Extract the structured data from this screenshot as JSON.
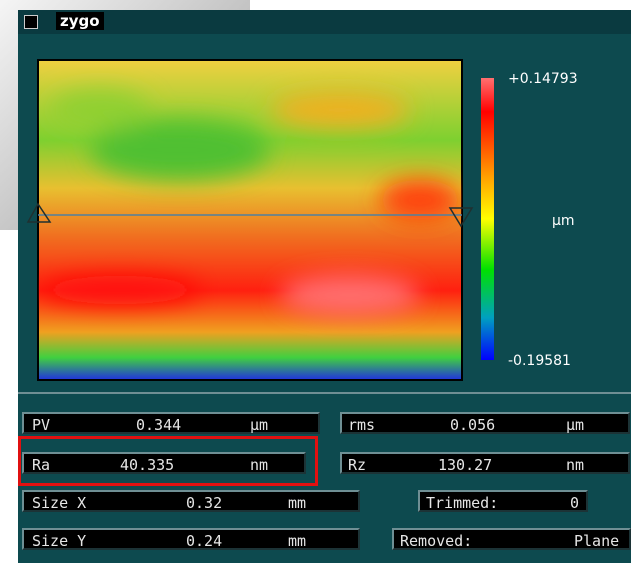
{
  "window": {
    "title": "zygo"
  },
  "colorbar": {
    "max": "+0.14793",
    "unit": "µm",
    "min": "-0.19581"
  },
  "results": [
    {
      "label": "PV",
      "value": "0.344",
      "unit": "µm"
    },
    {
      "label": "rms",
      "value": "0.056",
      "unit": "µm"
    },
    {
      "label": "Ra",
      "value": "40.335",
      "unit": "nm"
    },
    {
      "label": "Rz",
      "value": "130.27",
      "unit": "nm"
    },
    {
      "label": "Size X",
      "value": "0.32",
      "unit": "mm"
    },
    {
      "label": "Trimmed:",
      "value": "0"
    },
    {
      "label": "Size Y",
      "value": "0.24",
      "unit": "mm"
    },
    {
      "label": "Removed:",
      "value": "Plane"
    }
  ]
}
